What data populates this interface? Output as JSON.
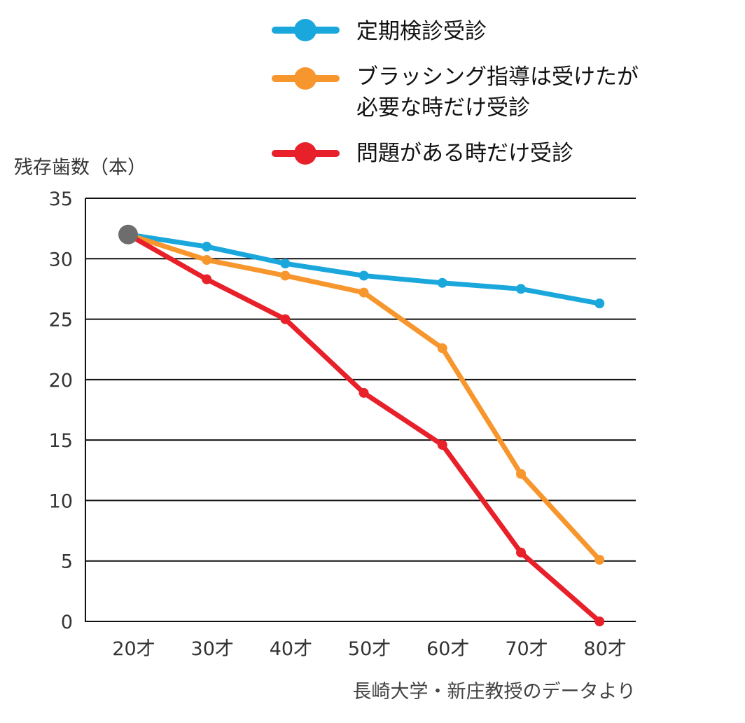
{
  "chart_data": {
    "type": "line",
    "ylabel": "残存歯数（本）",
    "categories": [
      "20才",
      "30才",
      "40才",
      "50才",
      "60才",
      "70才",
      "80才"
    ],
    "yticks": [
      "0",
      "5",
      "10",
      "15",
      "20",
      "25",
      "30",
      "35"
    ],
    "ylim": [
      0,
      35
    ],
    "grid": true,
    "legend_position": "top-right",
    "series": [
      {
        "name": "定期検診受診",
        "color": "#1aa7dc",
        "values": [
          32,
          31,
          29.6,
          28.6,
          28,
          27.5,
          26.3
        ]
      },
      {
        "name_lines": [
          "ブラッシング指導は受けたが",
          "必要な時だけ受診"
        ],
        "color": "#f7962c",
        "values": [
          32,
          29.9,
          28.6,
          27.2,
          22.6,
          12.2,
          5.1
        ]
      },
      {
        "name": "問題がある時だけ受診",
        "color": "#e8202a",
        "values": [
          32,
          28.3,
          25,
          18.9,
          14.6,
          5.7,
          0
        ]
      }
    ],
    "start_point_color": "#6d6d6d",
    "source": "長崎大学・新庄教授のデータより"
  }
}
